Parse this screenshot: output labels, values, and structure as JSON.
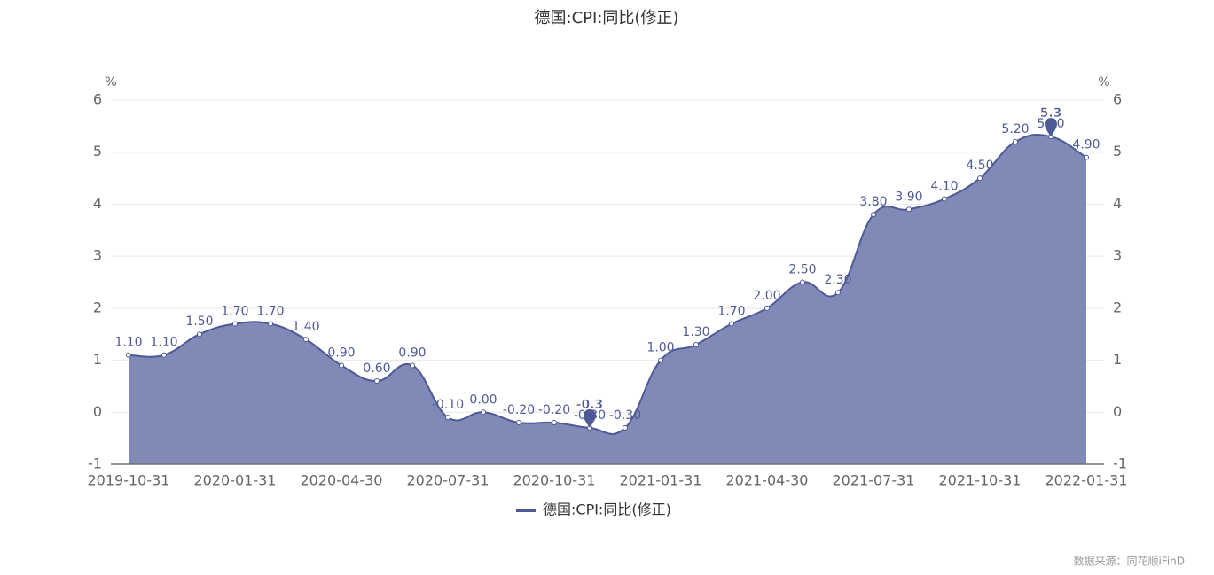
{
  "chart_data": {
    "type": "line",
    "title": "德国:CPI:同比(修正)",
    "y_unit": "%",
    "y2_unit": "%",
    "categories": [
      "2019-10-31",
      null,
      null,
      "2020-01-31",
      null,
      null,
      "2020-04-30",
      null,
      null,
      "2020-07-31",
      null,
      null,
      "2020-10-31",
      null,
      null,
      "2021-01-31",
      null,
      null,
      "2021-04-30",
      null,
      null,
      "2021-07-31",
      null,
      null,
      "2021-10-31",
      null,
      null,
      "2022-01-31"
    ],
    "series": [
      {
        "name": "德国:CPI:同比(修正)",
        "color": "#4e5a96",
        "area_color": "#8189b6",
        "values": [
          1.1,
          1.1,
          1.5,
          1.7,
          1.7,
          1.4,
          0.9,
          0.6,
          0.9,
          -0.1,
          0.0,
          -0.2,
          -0.2,
          -0.3,
          -0.3,
          1.0,
          1.3,
          1.7,
          2.0,
          2.5,
          2.3,
          3.8,
          3.9,
          4.1,
          4.5,
          5.2,
          5.3,
          4.9
        ],
        "value_labels": [
          "1.10",
          "1.10",
          "1.50",
          "1.70",
          "1.70",
          "1.40",
          "0.90",
          "0.60",
          "0.90",
          "-0.10",
          "0.00",
          "-0.20",
          "-0.20",
          "-0.30",
          "-0.30",
          "1.00",
          "1.30",
          "1.70",
          "2.00",
          "2.50",
          "2.30",
          "3.80",
          "3.90",
          "4.10",
          "4.50",
          "5.20",
          "5.30",
          "4.90"
        ],
        "mark_points": [
          5.3,
          -0.3
        ]
      }
    ],
    "ylim": [
      -1,
      6
    ],
    "yticks": [
      -1,
      0,
      1,
      2,
      3,
      4,
      5,
      6
    ],
    "y2lim": [
      -1,
      6
    ],
    "y2ticks": [
      -1,
      0,
      1,
      2,
      3,
      4,
      5,
      6
    ],
    "grid": true,
    "legend": "bottom",
    "source": "数据来源：同花顺iFinD"
  }
}
